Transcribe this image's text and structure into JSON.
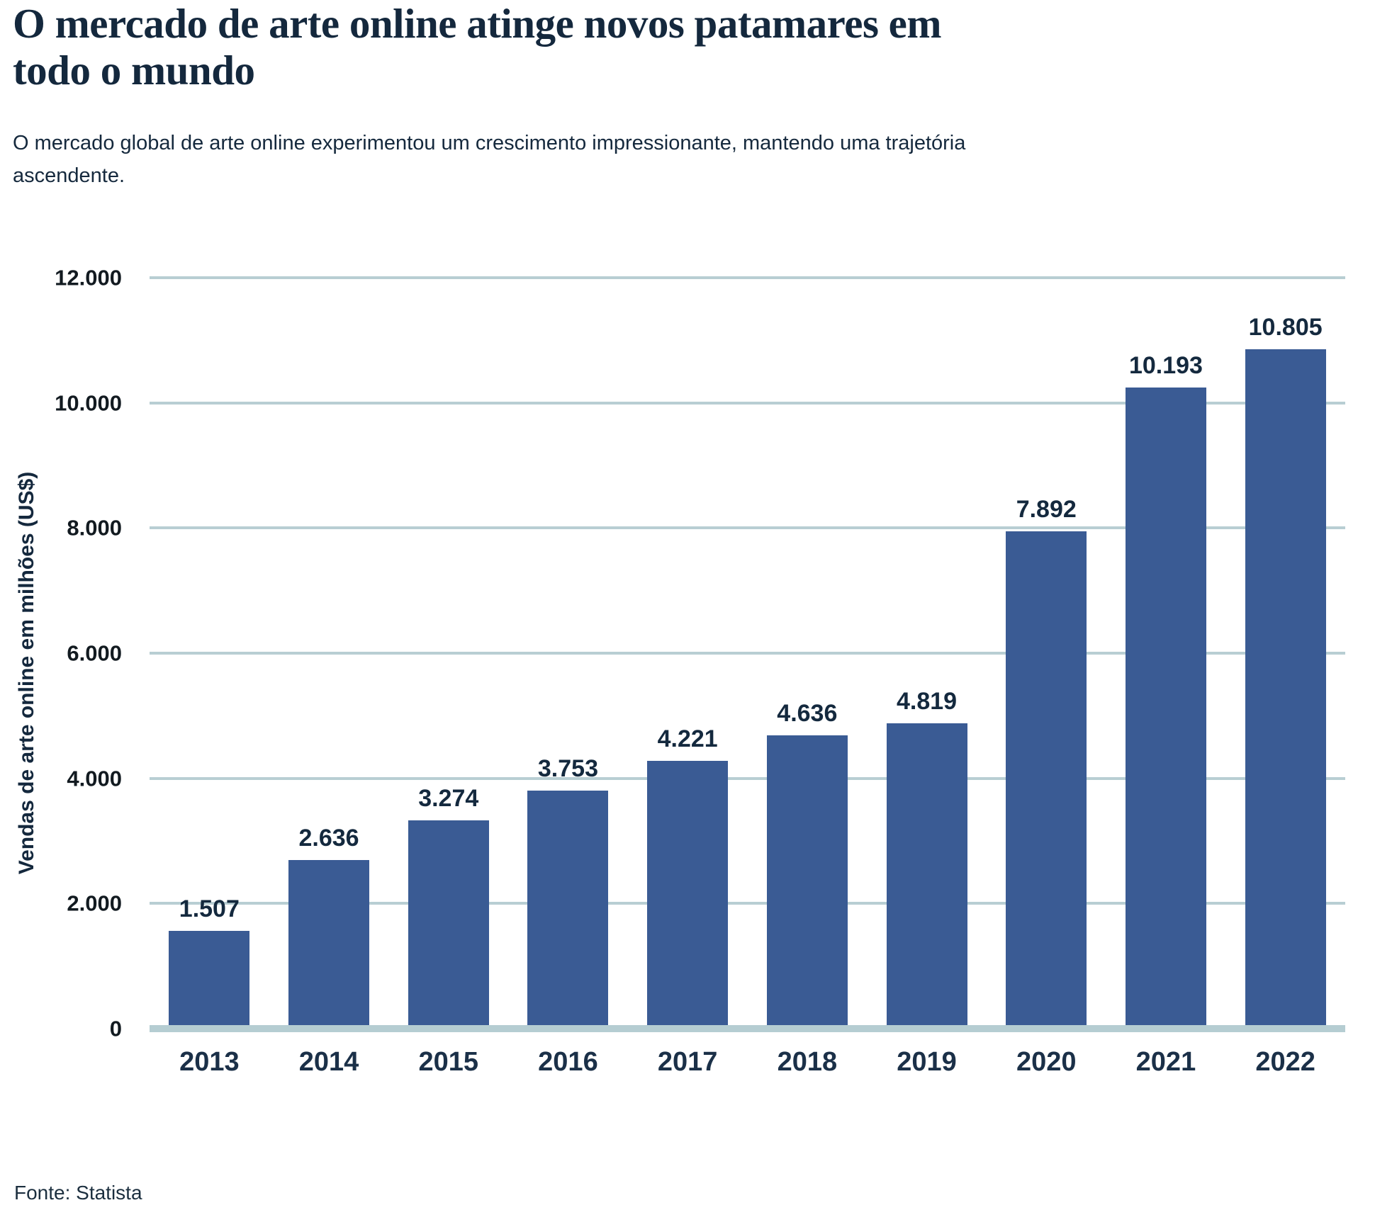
{
  "header": {
    "title_lines": [
      "O mercado de arte online atinge novos patamares em",
      "todo o mundo"
    ],
    "subtitle_lines": [
      "O mercado global de arte online experimentou um crescimento impressionante, mantendo uma trajetória",
      "ascendente."
    ]
  },
  "chart_data": {
    "type": "bar",
    "title": "O mercado de arte online atinge novos patamares em todo o mundo",
    "subtitle": "O mercado global de arte online experimentou um crescimento impressionante, mantendo uma trajetória ascendente.",
    "categories": [
      "2013",
      "2014",
      "2015",
      "2016",
      "2017",
      "2018",
      "2019",
      "2020",
      "2021",
      "2022"
    ],
    "values": [
      1507,
      2636,
      3274,
      3753,
      4221,
      4636,
      4819,
      7892,
      10193,
      10805
    ],
    "value_labels": [
      "1.507",
      "2.636",
      "3.274",
      "3.753",
      "4.221",
      "4.636",
      "4.819",
      "7.892",
      "10.193",
      "10.805"
    ],
    "xlabel": "",
    "ylabel": "Vendas de arte online em milhões (US$)",
    "ylim": [
      0,
      12000
    ],
    "yticks": [
      {
        "value": 0,
        "label": "0"
      },
      {
        "value": 2000,
        "label": "2.000"
      },
      {
        "value": 4000,
        "label": "4.000"
      },
      {
        "value": 6000,
        "label": "6.000"
      },
      {
        "value": 8000,
        "label": "8.000"
      },
      {
        "value": 10000,
        "label": "10.000"
      },
      {
        "value": 12000,
        "label": "12.000"
      }
    ],
    "grid": true,
    "legend": false,
    "colors": {
      "bar": "#3a5b94",
      "gridline": "#b8ced3",
      "baseline": "#b5cdd2",
      "dark_text": "#14283d"
    }
  },
  "footer": {
    "source": "Fonte: Statista"
  }
}
